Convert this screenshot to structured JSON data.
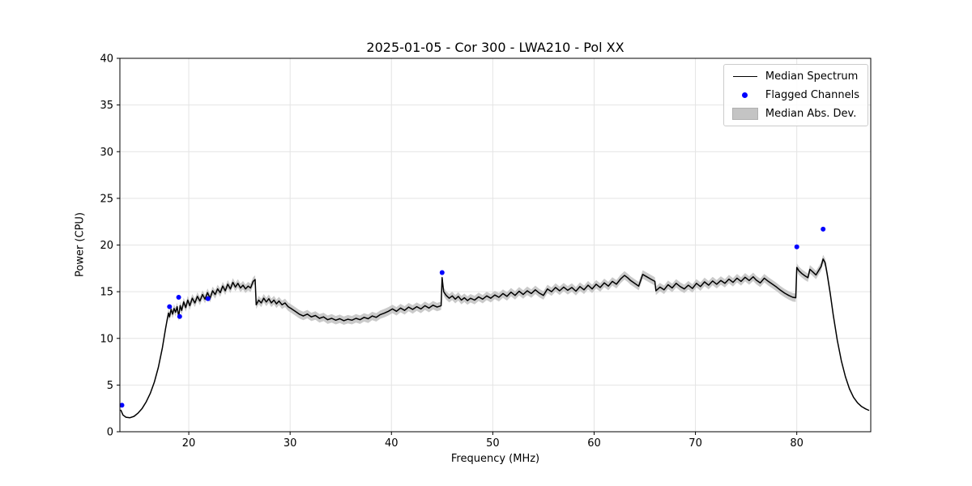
{
  "chart_data": {
    "type": "line",
    "title": "2025-01-05 - Cor 300 - LWA210 - Pol XX",
    "xlabel": "Frequency (MHz)",
    "ylabel": "Power (CPU)",
    "xlim": [
      13.2,
      87.3
    ],
    "ylim": [
      0,
      40
    ],
    "xticks": [
      20,
      30,
      40,
      50,
      60,
      70,
      80
    ],
    "yticks": [
      0,
      5,
      10,
      15,
      20,
      25,
      30,
      35,
      40
    ],
    "grid": true,
    "colors": {
      "line": "#000000",
      "flagged": "#0000ff",
      "band": "#c4c4c4",
      "grid": "#e4e4e4",
      "spine": "#000000"
    },
    "legend": {
      "position": "upper right",
      "entries": [
        {
          "label": "Median Spectrum",
          "type": "line",
          "color": "#000000"
        },
        {
          "label": "Flagged Channels",
          "type": "marker",
          "color": "#0000ff"
        },
        {
          "label": "Median Abs. Dev.",
          "type": "band",
          "color": "#c4c4c4"
        }
      ]
    },
    "mad_band": {
      "halfwidth": 0.45,
      "x_start": 17.8,
      "x_end": 83.3
    },
    "flagged_channels": [
      [
        13.4,
        2.85
      ],
      [
        18.1,
        13.4
      ],
      [
        19.0,
        14.4
      ],
      [
        19.1,
        12.35
      ],
      [
        21.9,
        14.25
      ],
      [
        45.0,
        17.05
      ],
      [
        80.0,
        19.8
      ],
      [
        82.6,
        21.7
      ]
    ],
    "median_spectrum": [
      [
        13.3,
        2.3
      ],
      [
        13.5,
        1.8
      ],
      [
        13.8,
        1.55
      ],
      [
        14.2,
        1.5
      ],
      [
        14.6,
        1.65
      ],
      [
        15.0,
        2.0
      ],
      [
        15.4,
        2.5
      ],
      [
        15.8,
        3.2
      ],
      [
        16.2,
        4.1
      ],
      [
        16.6,
        5.3
      ],
      [
        17.0,
        6.9
      ],
      [
        17.4,
        9.0
      ],
      [
        17.7,
        11.0
      ],
      [
        17.9,
        12.2
      ],
      [
        18.0,
        12.7
      ],
      [
        18.1,
        12.3
      ],
      [
        18.25,
        13.1
      ],
      [
        18.4,
        12.6
      ],
      [
        18.55,
        13.2
      ],
      [
        18.7,
        12.8
      ],
      [
        18.85,
        13.4
      ],
      [
        19.0,
        12.3
      ],
      [
        19.15,
        13.5
      ],
      [
        19.3,
        13.0
      ],
      [
        19.5,
        13.9
      ],
      [
        19.7,
        13.3
      ],
      [
        19.9,
        14.1
      ],
      [
        20.1,
        13.5
      ],
      [
        20.35,
        14.3
      ],
      [
        20.6,
        13.8
      ],
      [
        20.85,
        14.5
      ],
      [
        21.1,
        14.0
      ],
      [
        21.35,
        14.7
      ],
      [
        21.6,
        14.2
      ],
      [
        21.85,
        14.9
      ],
      [
        22.1,
        14.3
      ],
      [
        22.35,
        15.1
      ],
      [
        22.6,
        14.7
      ],
      [
        22.85,
        15.3
      ],
      [
        23.1,
        14.9
      ],
      [
        23.35,
        15.6
      ],
      [
        23.6,
        15.1
      ],
      [
        23.85,
        15.8
      ],
      [
        24.1,
        15.3
      ],
      [
        24.35,
        16.0
      ],
      [
        24.6,
        15.5
      ],
      [
        24.85,
        15.9
      ],
      [
        25.1,
        15.4
      ],
      [
        25.35,
        15.7
      ],
      [
        25.6,
        15.3
      ],
      [
        25.85,
        15.6
      ],
      [
        26.1,
        15.4
      ],
      [
        26.35,
        16.1
      ],
      [
        26.55,
        16.3
      ],
      [
        26.65,
        13.6
      ],
      [
        26.9,
        14.1
      ],
      [
        27.15,
        13.8
      ],
      [
        27.4,
        14.3
      ],
      [
        27.65,
        13.9
      ],
      [
        27.9,
        14.25
      ],
      [
        28.15,
        13.8
      ],
      [
        28.4,
        14.1
      ],
      [
        28.65,
        13.7
      ],
      [
        28.9,
        14.0
      ],
      [
        29.2,
        13.6
      ],
      [
        29.5,
        13.8
      ],
      [
        29.8,
        13.4
      ],
      [
        30.1,
        13.2
      ],
      [
        30.5,
        12.9
      ],
      [
        30.9,
        12.6
      ],
      [
        31.3,
        12.4
      ],
      [
        31.7,
        12.6
      ],
      [
        32.1,
        12.3
      ],
      [
        32.5,
        12.45
      ],
      [
        32.9,
        12.15
      ],
      [
        33.3,
        12.3
      ],
      [
        33.7,
        12.0
      ],
      [
        34.1,
        12.15
      ],
      [
        34.5,
        11.95
      ],
      [
        34.9,
        12.1
      ],
      [
        35.3,
        11.9
      ],
      [
        35.7,
        12.05
      ],
      [
        36.1,
        11.95
      ],
      [
        36.5,
        12.15
      ],
      [
        36.9,
        12.0
      ],
      [
        37.3,
        12.25
      ],
      [
        37.7,
        12.1
      ],
      [
        38.1,
        12.4
      ],
      [
        38.5,
        12.25
      ],
      [
        38.9,
        12.55
      ],
      [
        39.3,
        12.7
      ],
      [
        39.7,
        12.9
      ],
      [
        40.1,
        13.15
      ],
      [
        40.5,
        12.9
      ],
      [
        40.9,
        13.25
      ],
      [
        41.3,
        13.0
      ],
      [
        41.7,
        13.35
      ],
      [
        42.1,
        13.1
      ],
      [
        42.5,
        13.4
      ],
      [
        42.9,
        13.15
      ],
      [
        43.3,
        13.5
      ],
      [
        43.7,
        13.25
      ],
      [
        44.1,
        13.55
      ],
      [
        44.5,
        13.35
      ],
      [
        44.9,
        13.5
      ],
      [
        45.0,
        16.5
      ],
      [
        45.15,
        15.0
      ],
      [
        45.4,
        14.6
      ],
      [
        45.7,
        14.3
      ],
      [
        46.0,
        14.55
      ],
      [
        46.3,
        14.2
      ],
      [
        46.6,
        14.5
      ],
      [
        46.9,
        14.1
      ],
      [
        47.2,
        14.35
      ],
      [
        47.5,
        14.05
      ],
      [
        47.8,
        14.3
      ],
      [
        48.2,
        14.1
      ],
      [
        48.6,
        14.45
      ],
      [
        49.0,
        14.2
      ],
      [
        49.4,
        14.55
      ],
      [
        49.8,
        14.3
      ],
      [
        50.2,
        14.65
      ],
      [
        50.6,
        14.4
      ],
      [
        51.0,
        14.8
      ],
      [
        51.4,
        14.5
      ],
      [
        51.8,
        14.95
      ],
      [
        52.2,
        14.6
      ],
      [
        52.6,
        15.05
      ],
      [
        53.0,
        14.7
      ],
      [
        53.4,
        15.1
      ],
      [
        53.8,
        14.8
      ],
      [
        54.2,
        15.2
      ],
      [
        54.6,
        14.85
      ],
      [
        55.0,
        14.6
      ],
      [
        55.4,
        15.3
      ],
      [
        55.8,
        15.0
      ],
      [
        56.2,
        15.45
      ],
      [
        56.6,
        15.1
      ],
      [
        57.0,
        15.5
      ],
      [
        57.4,
        15.15
      ],
      [
        57.8,
        15.45
      ],
      [
        58.2,
        15.05
      ],
      [
        58.6,
        15.55
      ],
      [
        59.0,
        15.2
      ],
      [
        59.4,
        15.7
      ],
      [
        59.8,
        15.3
      ],
      [
        60.2,
        15.8
      ],
      [
        60.6,
        15.45
      ],
      [
        61.0,
        15.95
      ],
      [
        61.4,
        15.6
      ],
      [
        61.8,
        16.1
      ],
      [
        62.2,
        15.8
      ],
      [
        62.6,
        16.35
      ],
      [
        63.0,
        16.75
      ],
      [
        63.3,
        16.5
      ],
      [
        63.6,
        16.2
      ],
      [
        64.0,
        15.9
      ],
      [
        64.4,
        15.6
      ],
      [
        64.8,
        16.85
      ],
      [
        65.2,
        16.6
      ],
      [
        65.6,
        16.35
      ],
      [
        66.0,
        16.1
      ],
      [
        66.1,
        15.1
      ],
      [
        66.5,
        15.5
      ],
      [
        66.9,
        15.2
      ],
      [
        67.3,
        15.75
      ],
      [
        67.7,
        15.4
      ],
      [
        68.1,
        15.9
      ],
      [
        68.5,
        15.55
      ],
      [
        68.9,
        15.3
      ],
      [
        69.3,
        15.7
      ],
      [
        69.7,
        15.35
      ],
      [
        70.1,
        15.9
      ],
      [
        70.5,
        15.55
      ],
      [
        70.9,
        16.05
      ],
      [
        71.3,
        15.7
      ],
      [
        71.7,
        16.15
      ],
      [
        72.1,
        15.8
      ],
      [
        72.5,
        16.2
      ],
      [
        72.9,
        15.9
      ],
      [
        73.3,
        16.35
      ],
      [
        73.7,
        16.0
      ],
      [
        74.1,
        16.45
      ],
      [
        74.5,
        16.1
      ],
      [
        74.9,
        16.55
      ],
      [
        75.3,
        16.2
      ],
      [
        75.7,
        16.6
      ],
      [
        76.0,
        16.25
      ],
      [
        76.4,
        15.95
      ],
      [
        76.8,
        16.45
      ],
      [
        77.2,
        16.1
      ],
      [
        77.6,
        15.8
      ],
      [
        78.0,
        15.5
      ],
      [
        78.4,
        15.15
      ],
      [
        78.8,
        14.85
      ],
      [
        79.2,
        14.6
      ],
      [
        79.6,
        14.4
      ],
      [
        79.9,
        14.35
      ],
      [
        80.0,
        17.6
      ],
      [
        80.2,
        17.25
      ],
      [
        80.5,
        16.95
      ],
      [
        80.8,
        16.7
      ],
      [
        81.1,
        16.5
      ],
      [
        81.3,
        17.4
      ],
      [
        81.6,
        17.1
      ],
      [
        81.9,
        16.8
      ],
      [
        82.1,
        17.15
      ],
      [
        82.4,
        17.7
      ],
      [
        82.6,
        18.5
      ],
      [
        82.8,
        18.1
      ],
      [
        83.0,
        16.9
      ],
      [
        83.3,
        14.8
      ],
      [
        83.6,
        12.5
      ],
      [
        84.0,
        9.8
      ],
      [
        84.4,
        7.6
      ],
      [
        84.8,
        5.9
      ],
      [
        85.2,
        4.6
      ],
      [
        85.6,
        3.7
      ],
      [
        86.0,
        3.1
      ],
      [
        86.4,
        2.7
      ],
      [
        86.8,
        2.45
      ],
      [
        87.1,
        2.3
      ]
    ]
  }
}
